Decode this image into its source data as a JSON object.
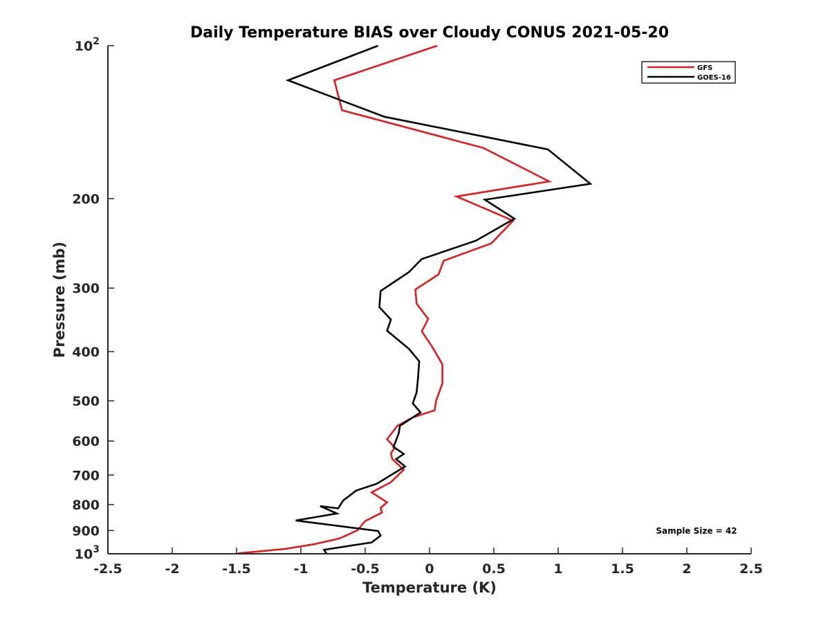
{
  "chart_data": {
    "type": "line",
    "title": "Daily Temperature BIAS over Cloudy CONUS 2021-05-20",
    "xlabel": "Temperature (K)",
    "ylabel": "Pressure (mb)",
    "xlim": [
      -2.5,
      2.5
    ],
    "ylim": [
      100,
      1000
    ],
    "y_scale": "log",
    "y_reversed": true,
    "x_ticks": [
      "-2.5",
      "-2",
      "-1.5",
      "-1",
      "-0.5",
      "0",
      "0.5",
      "1",
      "1.5",
      "2",
      "2.5"
    ],
    "y_ticks": [
      {
        "value": 100,
        "base": "10",
        "exp": "2"
      },
      {
        "value": 200,
        "label": "200"
      },
      {
        "value": 300,
        "label": "300"
      },
      {
        "value": 400,
        "label": "400"
      },
      {
        "value": 500,
        "label": "500"
      },
      {
        "value": 600,
        "label": "600"
      },
      {
        "value": 700,
        "label": "700"
      },
      {
        "value": 800,
        "label": "800"
      },
      {
        "value": 900,
        "label": "900"
      },
      {
        "value": 1000,
        "base": "10",
        "exp": "3"
      }
    ],
    "grid": false,
    "legend_position": "top-right",
    "annotation": "Sample Size = 42",
    "series": [
      {
        "name": "GFS",
        "color": "#e41a1c",
        "points": [
          [
            0.06,
            100
          ],
          [
            -0.74,
            117
          ],
          [
            -0.68,
            134
          ],
          [
            0.42,
            159
          ],
          [
            0.93,
            185
          ],
          [
            0.21,
            198
          ],
          [
            0.65,
            221
          ],
          [
            0.48,
            245
          ],
          [
            0.11,
            265
          ],
          [
            0.07,
            282
          ],
          [
            -0.11,
            302
          ],
          [
            -0.1,
            322
          ],
          [
            -0.01,
            345
          ],
          [
            -0.06,
            365
          ],
          [
            0.02,
            391
          ],
          [
            0.1,
            424
          ],
          [
            0.1,
            462
          ],
          [
            0.05,
            501
          ],
          [
            0.04,
            522
          ],
          [
            -0.13,
            539
          ],
          [
            -0.25,
            560
          ],
          [
            -0.33,
            595
          ],
          [
            -0.27,
            618
          ],
          [
            -0.3,
            634
          ],
          [
            -0.29,
            651
          ],
          [
            -0.2,
            683
          ],
          [
            -0.3,
            723
          ],
          [
            -0.45,
            757
          ],
          [
            -0.33,
            792
          ],
          [
            -0.38,
            812
          ],
          [
            -0.37,
            830
          ],
          [
            -0.5,
            862
          ],
          [
            -0.56,
            899
          ],
          [
            -0.7,
            933
          ],
          [
            -0.9,
            958
          ],
          [
            -1.12,
            978
          ],
          [
            -1.49,
            998
          ]
        ]
      },
      {
        "name": "GOES-16",
        "color": "#000000",
        "points": [
          [
            -0.4,
            100
          ],
          [
            -1.1,
            117
          ],
          [
            -0.35,
            138
          ],
          [
            0.92,
            160
          ],
          [
            1.25,
            187
          ],
          [
            0.43,
            201
          ],
          [
            0.66,
            219
          ],
          [
            0.36,
            242
          ],
          [
            -0.06,
            263
          ],
          [
            -0.16,
            279
          ],
          [
            -0.38,
            304
          ],
          [
            -0.39,
            327
          ],
          [
            -0.3,
            346
          ],
          [
            -0.33,
            364
          ],
          [
            -0.16,
            395
          ],
          [
            -0.08,
            418
          ],
          [
            -0.09,
            452
          ],
          [
            -0.1,
            481
          ],
          [
            -0.13,
            506
          ],
          [
            -0.07,
            527
          ],
          [
            -0.23,
            560
          ],
          [
            -0.24,
            580
          ],
          [
            -0.28,
            616
          ],
          [
            -0.2,
            636
          ],
          [
            -0.26,
            651
          ],
          [
            -0.19,
            673
          ],
          [
            -0.41,
            728
          ],
          [
            -0.57,
            751
          ],
          [
            -0.67,
            785
          ],
          [
            -0.71,
            814
          ],
          [
            -0.85,
            806
          ],
          [
            -0.72,
            833
          ],
          [
            -1.04,
            860
          ],
          [
            -0.4,
            902
          ],
          [
            -0.38,
            921
          ],
          [
            -0.45,
            950
          ],
          [
            -0.82,
            982
          ],
          [
            -0.8,
            1000
          ]
        ]
      }
    ]
  }
}
